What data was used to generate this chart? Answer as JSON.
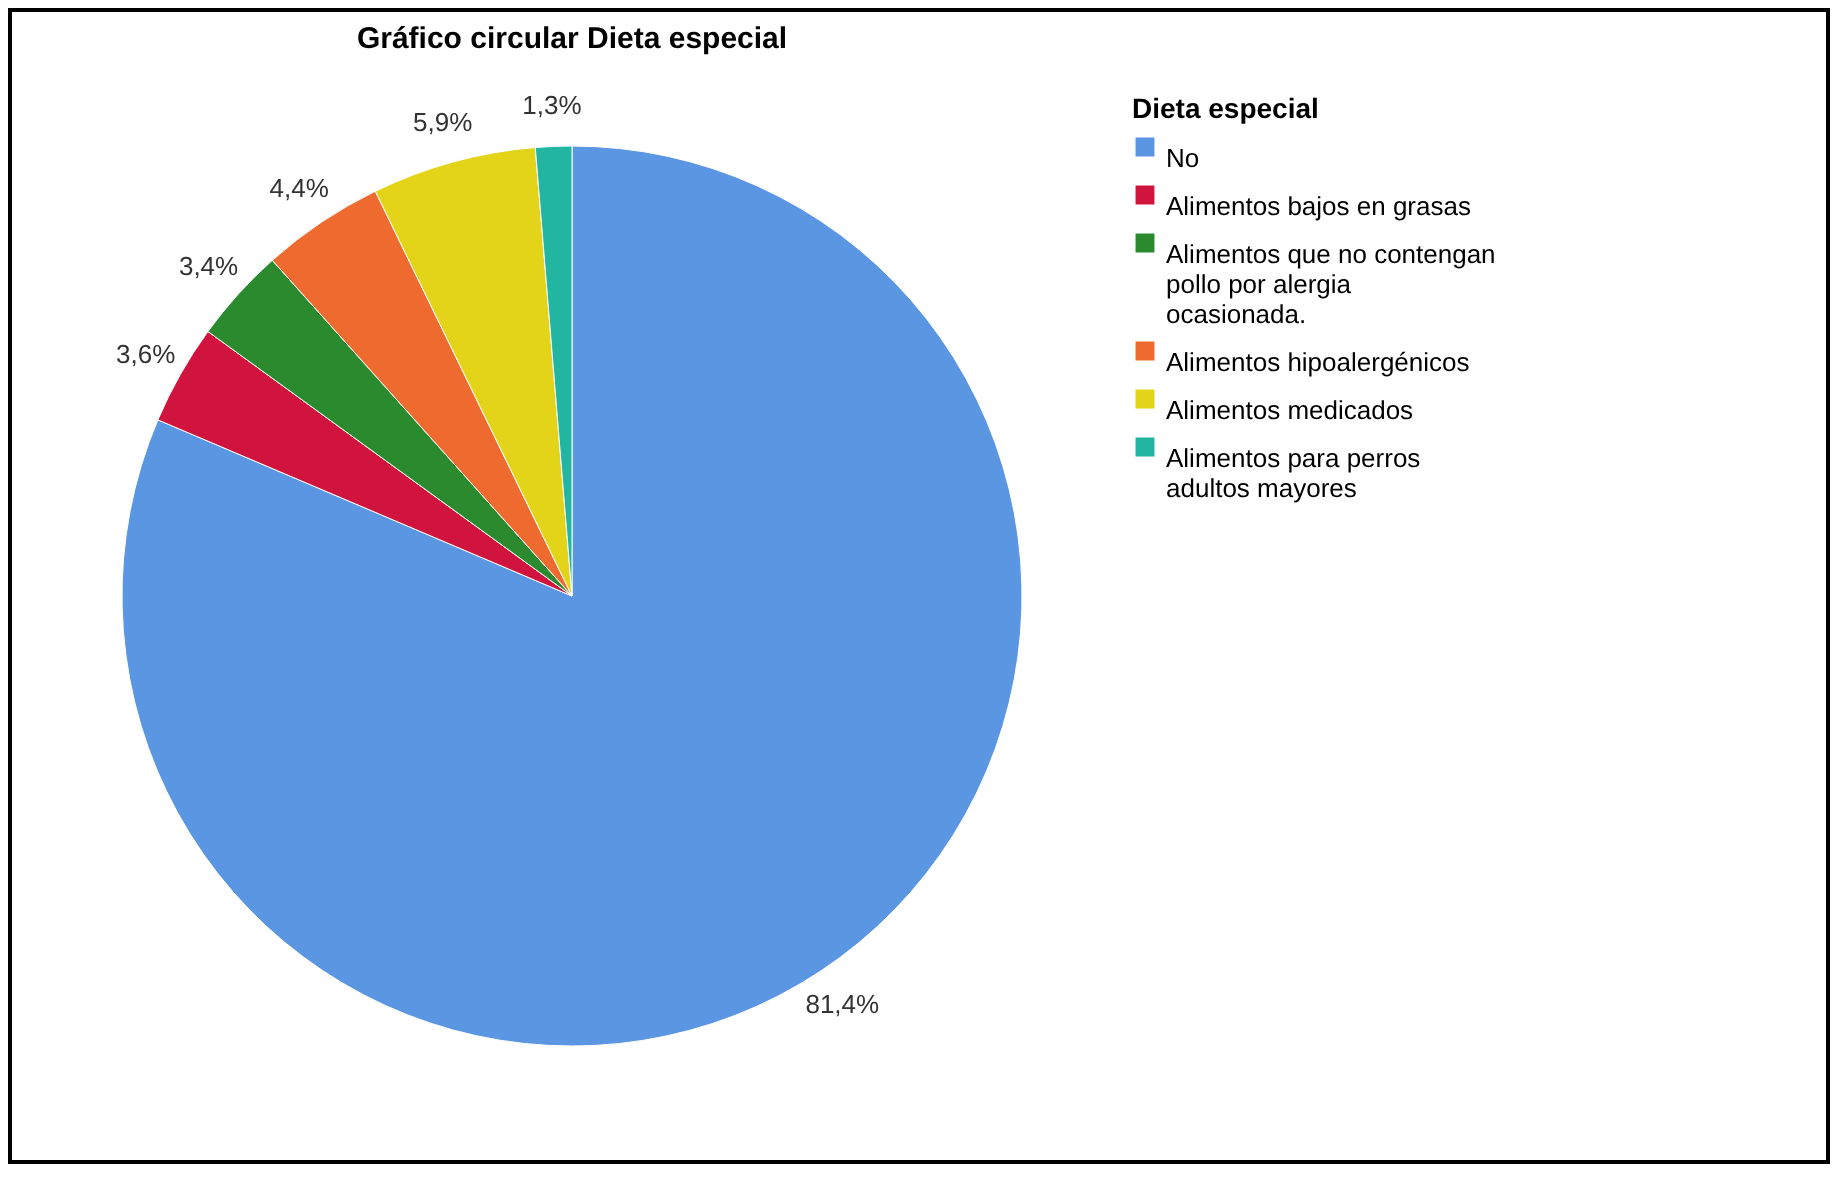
{
  "chart_data": {
    "type": "pie",
    "title": "Gráfico circular Dieta especial",
    "legend_title": "Dieta especial",
    "categories": [
      "No",
      "Alimentos bajos en grasas",
      "Alimentos que no contengan pollo por alergia ocasionada.",
      "Alimentos hipoalergénicos",
      "Alimentos medicados",
      "Alimentos para perros adultos mayores"
    ],
    "values": [
      81.4,
      3.6,
      3.4,
      4.4,
      5.9,
      1.3
    ],
    "colors": [
      "#5b96e3",
      "#d0143e",
      "#2b8a2e",
      "#ee6a2e",
      "#e3d41a",
      "#22b5a2"
    ],
    "value_labels": [
      "81,4%",
      "3,6%",
      "3,4%",
      "4,4%",
      "5,9%",
      "1,3%"
    ],
    "legend": "right"
  }
}
